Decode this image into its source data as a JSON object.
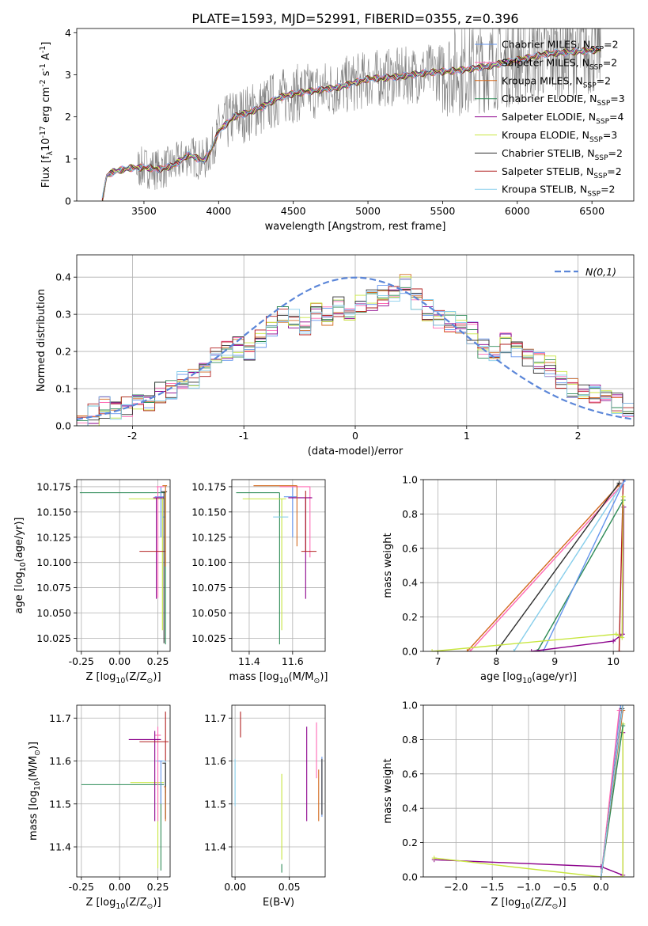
{
  "figure": {
    "title": "PLATE=1593, MJD=52991, FIBERID=0355, z=0.396",
    "model_colors": {
      "Chabrier MILES": "#6495ed",
      "Salpeter MILES": "#ff69b4",
      "Kroupa MILES": "#d2691e",
      "Chabrier ELODIE": "#2e8b57",
      "Salpeter ELODIE": "#8b008b",
      "Kroupa ELODIE": "#c8e640",
      "Chabrier STELIB": "#2f2f2f",
      "Salpeter STELIB": "#b22222",
      "Kroupa STELIB": "#87ceeb"
    }
  },
  "chart_data": [
    {
      "id": "spectrum",
      "type": "line",
      "xlabel": "wavelength [Angstrom, rest frame]",
      "ylabel": "Flux [f$_\\lambda$10$^{-17}$ erg cm$^{-2}$ s$^{-1}$ A$^{-1}$]",
      "xlim": [
        3050,
        6780
      ],
      "ylim": [
        0,
        4.1
      ],
      "xticks": [
        3500,
        4000,
        4500,
        5000,
        5500,
        6000,
        6500
      ],
      "yticks": [
        0,
        1,
        2,
        3,
        4
      ],
      "grid": false,
      "legend_position": "lower-right",
      "observed_flux_color": "#808080",
      "model_continuum": {
        "x": [
          3220,
          3250,
          3300,
          3400,
          3500,
          3600,
          3700,
          3800,
          3900,
          3950,
          4000,
          4100,
          4200,
          4300,
          4400,
          4500,
          4600,
          4700,
          4800,
          4900,
          5000,
          5200,
          5400,
          5600,
          5800,
          6000,
          6200,
          6400,
          6560
        ],
        "y": [
          0.0,
          0.6,
          0.7,
          0.78,
          0.8,
          0.75,
          0.85,
          1.1,
          0.95,
          1.2,
          1.65,
          2.0,
          2.1,
          2.25,
          2.45,
          2.55,
          2.6,
          2.65,
          2.7,
          2.8,
          2.9,
          2.95,
          3.05,
          3.1,
          3.2,
          3.35,
          3.5,
          3.55,
          3.6
        ]
      },
      "series": [
        {
          "name": "Chabrier MILES, N$_{SSP}$=2",
          "color": "#6495ed"
        },
        {
          "name": "Salpeter MILES, N$_{SSP}$=2",
          "color": "#ff69b4"
        },
        {
          "name": "Kroupa MILES, N$_{SSP}$=2",
          "color": "#d2691e"
        },
        {
          "name": "Chabrier ELODIE, N$_{SSP}$=3",
          "color": "#2e8b57"
        },
        {
          "name": "Salpeter ELODIE, N$_{SSP}$=4",
          "color": "#8b008b"
        },
        {
          "name": "Kroupa ELODIE, N$_{SSP}$=3",
          "color": "#c8e640"
        },
        {
          "name": "Chabrier STELIB, N$_{SSP}$=2",
          "color": "#2f2f2f"
        },
        {
          "name": "Salpeter STELIB, N$_{SSP}$=2",
          "color": "#b22222"
        },
        {
          "name": "Kroupa STELIB, N$_{SSP}$=2",
          "color": "#87ceeb"
        }
      ]
    },
    {
      "id": "residuals",
      "type": "line",
      "xlabel": "(data-model)/error",
      "ylabel": "Normed distribution",
      "xlim": [
        -2.5,
        2.5
      ],
      "ylim": [
        0,
        0.46
      ],
      "xticks": [
        -2,
        -1,
        0,
        1,
        2
      ],
      "yticks": [
        0.0,
        0.1,
        0.2,
        0.3,
        0.4
      ],
      "grid": true,
      "legend_position": "top-right",
      "reference_curve": {
        "name": "$\\mathcal{N}(0,1)$",
        "mean": 0,
        "sigma": 1,
        "color": "#5b86d8",
        "style": "dashed"
      },
      "histogram_bins": [
        -2.5,
        -2.4,
        -2.3,
        -2.2,
        -2.1,
        -2.0,
        -1.9,
        -1.8,
        -1.7,
        -1.6,
        -1.5,
        -1.4,
        -1.3,
        -1.2,
        -1.1,
        -1.0,
        -0.9,
        -0.8,
        -0.7,
        -0.6,
        -0.5,
        -0.4,
        -0.3,
        -0.2,
        -0.1,
        0.0,
        0.1,
        0.2,
        0.3,
        0.4,
        0.5,
        0.6,
        0.7,
        0.8,
        0.9,
        1.0,
        1.1,
        1.2,
        1.3,
        1.4,
        1.5,
        1.6,
        1.7,
        1.8,
        1.9,
        2.0,
        2.1,
        2.2,
        2.3,
        2.4,
        2.5
      ],
      "histogram_values": [
        0.02,
        0.03,
        0.05,
        0.04,
        0.05,
        0.06,
        0.07,
        0.09,
        0.1,
        0.12,
        0.13,
        0.16,
        0.19,
        0.2,
        0.21,
        0.2,
        0.24,
        0.27,
        0.3,
        0.29,
        0.27,
        0.31,
        0.3,
        0.32,
        0.31,
        0.33,
        0.34,
        0.35,
        0.36,
        0.38,
        0.34,
        0.31,
        0.29,
        0.28,
        0.27,
        0.25,
        0.21,
        0.2,
        0.22,
        0.21,
        0.19,
        0.17,
        0.16,
        0.13,
        0.1,
        0.09,
        0.08,
        0.07,
        0.06,
        0.04
      ]
    },
    {
      "id": "age-vs-Z",
      "type": "scatter",
      "xlabel": "Z [log$_{10}$(Z/Z$_\\odot$)]",
      "ylabel": "age  [log$_{10}$(age/yr)]",
      "xlim": [
        -0.28,
        0.33
      ],
      "ylim": [
        10.012,
        10.182
      ],
      "xticks": [
        -0.25,
        0.0,
        0.25
      ],
      "yticks": [
        10.025,
        10.05,
        10.075,
        10.1,
        10.125,
        10.15,
        10.175
      ],
      "grid": true,
      "points": [
        {
          "model": "Chabrier ELODIE",
          "x": 0.3,
          "y": 10.169,
          "xerr": [
            0.56,
            0.0
          ],
          "yerr": [
            0.15,
            0.0
          ]
        },
        {
          "model": "Kroupa ELODIE",
          "x": 0.28,
          "y": 10.163,
          "xerr": [
            0.22,
            0.02
          ],
          "yerr": [
            0.13,
            0.0
          ]
        },
        {
          "model": "Chabrier MILES",
          "x": 0.27,
          "y": 10.165,
          "xerr": [
            0.04,
            0.02
          ],
          "yerr": [
            0.04,
            0.01
          ]
        },
        {
          "model": "Salpeter MILES",
          "x": 0.25,
          "y": 10.175,
          "xerr": [
            0.01,
            0.04
          ],
          "yerr": [
            0.11,
            0.0
          ]
        },
        {
          "model": "Salpeter ELODIE",
          "x": 0.24,
          "y": 10.164,
          "xerr": [
            0.02,
            0.05
          ],
          "yerr": [
            0.1,
            0.0
          ]
        },
        {
          "model": "Salpeter STELIB",
          "x": 0.22,
          "y": 10.111,
          "xerr": [
            0.09,
            0.08
          ],
          "yerr": [
            0.0,
            0.0
          ]
        },
        {
          "model": "Kroupa STELIB",
          "x": 0.3,
          "y": 10.145,
          "xerr": [
            0.02,
            0.0
          ],
          "yerr": [
            0.04,
            0.0
          ]
        },
        {
          "model": "Chabrier STELIB",
          "x": 0.29,
          "y": 10.17,
          "xerr": [
            0.02,
            0.02
          ],
          "yerr": [
            0.15,
            0.0
          ]
        },
        {
          "model": "Kroupa MILES",
          "x": 0.3,
          "y": 10.176,
          "xerr": [
            0.02,
            0.01
          ],
          "yerr": [
            0.08,
            0.0
          ]
        }
      ]
    },
    {
      "id": "age-vs-mass",
      "type": "scatter",
      "xlabel": "mass [log$_{10}$(M/M$_\\odot$)]",
      "ylabel": "",
      "xlim": [
        11.32,
        11.75
      ],
      "ylim": [
        10.012,
        10.182
      ],
      "xticks": [
        11.4,
        11.6
      ],
      "yticks": [
        10.025,
        10.05,
        10.075,
        10.1,
        10.125,
        10.15,
        10.175
      ],
      "grid": true,
      "points": [
        {
          "model": "Chabrier ELODIE",
          "x": 11.54,
          "y": 10.169,
          "xerr": [
            0.2,
            0.0
          ],
          "yerr": [
            0.15,
            0.0
          ]
        },
        {
          "model": "Kroupa ELODIE",
          "x": 11.55,
          "y": 10.163,
          "xerr": [
            0.18,
            0.02
          ],
          "yerr": [
            0.13,
            0.0
          ]
        },
        {
          "model": "Chabrier MILES",
          "x": 11.6,
          "y": 10.165,
          "xerr": [
            0.04,
            0.02
          ],
          "yerr": [
            0.04,
            0.01
          ]
        },
        {
          "model": "Salpeter MILES",
          "x": 11.68,
          "y": 10.175,
          "xerr": [
            0.14,
            0.0
          ],
          "yerr": [
            0.07,
            0.0
          ]
        },
        {
          "model": "Salpeter ELODIE",
          "x": 11.66,
          "y": 10.164,
          "xerr": [
            0.08,
            0.03
          ],
          "yerr": [
            0.1,
            0.0
          ]
        },
        {
          "model": "Salpeter STELIB",
          "x": 11.66,
          "y": 10.111,
          "xerr": [
            0.02,
            0.05
          ],
          "yerr": [
            0.0,
            0.06
          ]
        },
        {
          "model": "Kroupa STELIB",
          "x": 11.58,
          "y": 10.145,
          "xerr": [
            0.07,
            0.0
          ],
          "yerr": [
            0.0,
            0.0
          ]
        },
        {
          "model": "Chabrier STELIB",
          "x": 11.62,
          "y": 10.17,
          "xerr": [
            0.0,
            0.0
          ],
          "yerr": [
            0.0,
            0.0
          ]
        },
        {
          "model": "Kroupa MILES",
          "x": 11.62,
          "y": 10.176,
          "xerr": [
            0.2,
            0.0
          ],
          "yerr": [
            0.06,
            0.0
          ]
        }
      ]
    },
    {
      "id": "weight-vs-age",
      "type": "line",
      "xlabel": "age  [log$_{10}$(age/yr)]",
      "ylabel": "mass weight",
      "xlim": [
        6.75,
        10.35
      ],
      "ylim": [
        0,
        1
      ],
      "xticks": [
        7,
        8,
        9,
        10
      ],
      "yticks": [
        0.0,
        0.2,
        0.4,
        0.6,
        0.8,
        1.0
      ],
      "grid": true,
      "series": [
        {
          "model": "Kroupa MILES",
          "x": [
            7.5,
            10.1
          ],
          "y": [
            0.0,
            0.97
          ]
        },
        {
          "model": "Salpeter MILES",
          "x": [
            7.55,
            10.15
          ],
          "y": [
            0.0,
            0.97
          ]
        },
        {
          "model": "Chabrier STELIB",
          "x": [
            8.0,
            10.1
          ],
          "y": [
            0.0,
            0.98
          ]
        },
        {
          "model": "Salpeter STELIB",
          "x": [
            10.1,
            10.17
          ],
          "y": [
            0.0,
            1.0
          ]
        },
        {
          "model": "Kroupa STELIB",
          "x": [
            8.3,
            10.2
          ],
          "y": [
            0.0,
            1.0
          ]
        },
        {
          "model": "Chabrier ELODIE",
          "x": [
            8.7,
            10.17
          ],
          "y": [
            0.0,
            0.88
          ]
        },
        {
          "model": "Chabrier MILES",
          "x": [
            8.8,
            10.2
          ],
          "y": [
            0.0,
            1.0
          ]
        },
        {
          "model": "Salpeter ELODIE",
          "x": [
            8.6,
            10.0,
            10.16,
            10.18
          ],
          "y": [
            0.0,
            0.06,
            0.1,
            0.84
          ]
        },
        {
          "model": "Kroupa ELODIE",
          "x": [
            6.9,
            10.05,
            10.15,
            10.17
          ],
          "y": [
            0.0,
            0.1,
            0.08,
            0.9
          ]
        }
      ]
    },
    {
      "id": "mass-vs-Z",
      "type": "scatter",
      "xlabel": "Z [log$_{10}$(Z/Z$_\\odot$)]",
      "ylabel": "mass [log$_{10}$(M/M$_\\odot$)]",
      "xlim": [
        -0.28,
        0.33
      ],
      "ylim": [
        11.33,
        11.73
      ],
      "xticks": [
        -0.25,
        0.0,
        0.25
      ],
      "yticks": [
        11.4,
        11.5,
        11.6,
        11.7
      ],
      "grid": true,
      "points": [
        {
          "model": "Chabrier ELODIE",
          "x": 0.27,
          "y": 11.545,
          "xerr": [
            0.52,
            0.02
          ],
          "yerr": [
            0.2,
            0.0
          ]
        },
        {
          "model": "Kroupa ELODIE",
          "x": 0.25,
          "y": 11.55,
          "xerr": [
            0.18,
            0.04
          ],
          "yerr": [
            0.2,
            0.0
          ]
        },
        {
          "model": "Chabrier MILES",
          "x": 0.27,
          "y": 11.6,
          "xerr": [
            0.03,
            0.03
          ],
          "yerr": [
            0.1,
            0.0
          ]
        },
        {
          "model": "Salpeter MILES",
          "x": 0.25,
          "y": 11.66,
          "xerr": [
            0.02,
            0.02
          ],
          "yerr": [
            0.2,
            0.02
          ]
        },
        {
          "model": "Salpeter ELODIE",
          "x": 0.23,
          "y": 11.65,
          "xerr": [
            0.17,
            0.04
          ],
          "yerr": [
            0.19,
            0.02
          ]
        },
        {
          "model": "Salpeter STELIB",
          "x": 0.3,
          "y": 11.645,
          "xerr": [
            0.17,
            0.02
          ],
          "yerr": [
            0.12,
            0.07
          ]
        },
        {
          "model": "Kroupa STELIB",
          "x": 0.3,
          "y": 11.6,
          "xerr": [
            0.02,
            0.0
          ],
          "yerr": [
            0.1,
            0.0
          ]
        },
        {
          "model": "Chabrier STELIB",
          "x": 0.3,
          "y": 11.595,
          "xerr": [
            0.02,
            0.0
          ],
          "yerr": [
            0.13,
            0.0
          ]
        },
        {
          "model": "Kroupa MILES",
          "x": 0.3,
          "y": 11.54,
          "xerr": [
            0.01,
            0.0
          ],
          "yerr": [
            0.08,
            0.0
          ]
        }
      ]
    },
    {
      "id": "mass-vs-EBV",
      "type": "scatter",
      "xlabel": "E(B-V)",
      "ylabel": "",
      "xlim": [
        -0.003,
        0.083
      ],
      "ylim": [
        11.33,
        11.73
      ],
      "xticks": [
        0.0,
        0.05
      ],
      "yticks": [
        11.4,
        11.5,
        11.6,
        11.7
      ],
      "grid": true,
      "points": [
        {
          "model": "Chabrier ELODIE",
          "x": 0.043,
          "y": 11.36,
          "xerr": [
            0.0,
            0.0
          ],
          "yerr": [
            0.02,
            0.0
          ]
        },
        {
          "model": "Kroupa ELODIE",
          "x": 0.043,
          "y": 11.47,
          "xerr": [
            0.0,
            0.0
          ],
          "yerr": [
            0.1,
            0.1
          ]
        },
        {
          "model": "Chabrier MILES",
          "x": 0.08,
          "y": 11.53,
          "xerr": [
            0.0,
            0.0
          ],
          "yerr": [
            0.06,
            0.08
          ]
        },
        {
          "model": "Salpeter MILES",
          "x": 0.075,
          "y": 11.62,
          "xerr": [
            0.0,
            0.0
          ],
          "yerr": [
            0.06,
            0.07
          ]
        },
        {
          "model": "Salpeter ELODIE",
          "x": 0.066,
          "y": 11.57,
          "xerr": [
            0.0,
            0.0
          ],
          "yerr": [
            0.11,
            0.11
          ]
        },
        {
          "model": "Salpeter STELIB",
          "x": 0.005,
          "y": 11.685,
          "xerr": [
            0.0,
            0.0
          ],
          "yerr": [
            0.03,
            0.03
          ]
        },
        {
          "model": "Kroupa STELIB",
          "x": 0.0,
          "y": 11.545,
          "xerr": [
            0.0,
            0.0
          ],
          "yerr": [
            0.05,
            0.06
          ]
        },
        {
          "model": "Chabrier STELIB",
          "x": 0.08,
          "y": 11.555,
          "xerr": [
            0.0,
            0.0
          ],
          "yerr": [
            0.08,
            0.05
          ]
        },
        {
          "model": "Kroupa MILES",
          "x": 0.077,
          "y": 11.53,
          "xerr": [
            0.0,
            0.0
          ],
          "yerr": [
            0.07,
            0.05
          ]
        }
      ]
    },
    {
      "id": "weight-vs-Z",
      "type": "line",
      "xlabel": "Z [log$_{10}$(Z/Z$_\\odot$)]",
      "ylabel": "mass weight",
      "xlim": [
        -2.45,
        0.45
      ],
      "ylim": [
        0,
        1
      ],
      "xticks": [
        -2.0,
        -1.5,
        -1.0,
        -0.5,
        0.0
      ],
      "yticks": [
        0.0,
        0.2,
        0.4,
        0.6,
        0.8,
        1.0
      ],
      "grid": true,
      "series": [
        {
          "model": "Salpeter ELODIE",
          "x": [
            -2.3,
            0.0,
            0.3,
            0.3
          ],
          "y": [
            0.1,
            0.06,
            0.01,
            0.84
          ]
        },
        {
          "model": "Kroupa ELODIE",
          "x": [
            -2.3,
            0.0,
            0.3,
            0.3
          ],
          "y": [
            0.11,
            0.0,
            0.0,
            0.89
          ]
        },
        {
          "model": "Chabrier ELODIE",
          "x": [
            0.0,
            0.3
          ],
          "y": [
            0.0,
            0.88
          ]
        },
        {
          "model": "Chabrier MILES",
          "x": [
            0.0,
            0.27
          ],
          "y": [
            0.0,
            1.0
          ]
        },
        {
          "model": "Salpeter MILES",
          "x": [
            0.0,
            0.25
          ],
          "y": [
            0.0,
            0.97
          ]
        },
        {
          "model": "Kroupa MILES",
          "x": [
            0.0,
            0.3
          ],
          "y": [
            0.0,
            0.97
          ]
        },
        {
          "model": "Chabrier STELIB",
          "x": [
            0.0,
            0.29
          ],
          "y": [
            0.0,
            0.98
          ]
        },
        {
          "model": "Salpeter STELIB",
          "x": [
            0.0,
            0.3
          ],
          "y": [
            0.0,
            1.0
          ]
        },
        {
          "model": "Kroupa STELIB",
          "x": [
            0.0,
            0.3
          ],
          "y": [
            0.0,
            1.0
          ]
        }
      ]
    }
  ]
}
